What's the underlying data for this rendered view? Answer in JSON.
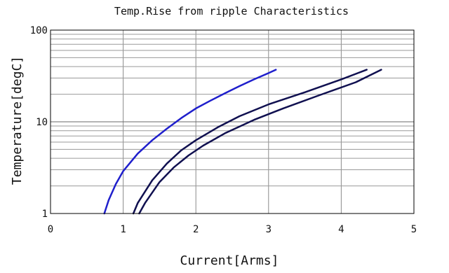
{
  "chart_data": {
    "type": "line",
    "title": "Temp.Rise from ripple Characteristics",
    "xlabel": "Current[Arms]",
    "ylabel": "Temperature[degC]",
    "xlim": [
      0,
      5
    ],
    "ylim": [
      1,
      100
    ],
    "yscale": "log",
    "grid": true,
    "x_ticks": [
      "0",
      "1",
      "2",
      "3",
      "4",
      "5"
    ],
    "y_ticks": [
      "1",
      "10",
      "100"
    ],
    "series": [
      {
        "color": "#1f1fcc",
        "points": [
          [
            0.74,
            1.0
          ],
          [
            0.8,
            1.4
          ],
          [
            0.9,
            2.1
          ],
          [
            1.0,
            2.9
          ],
          [
            1.2,
            4.5
          ],
          [
            1.4,
            6.3
          ],
          [
            1.6,
            8.4
          ],
          [
            1.8,
            11
          ],
          [
            2.0,
            14
          ],
          [
            2.2,
            17
          ],
          [
            2.4,
            20.5
          ],
          [
            2.6,
            24.5
          ],
          [
            2.8,
            29
          ],
          [
            3.0,
            34
          ],
          [
            3.1,
            37
          ]
        ]
      },
      {
        "color": "#101050",
        "points": [
          [
            1.14,
            1.0
          ],
          [
            1.2,
            1.3
          ],
          [
            1.4,
            2.3
          ],
          [
            1.6,
            3.5
          ],
          [
            1.8,
            4.9
          ],
          [
            2.0,
            6.3
          ],
          [
            2.3,
            8.7
          ],
          [
            2.6,
            11.5
          ],
          [
            3.0,
            15.5
          ],
          [
            3.5,
            21
          ],
          [
            4.0,
            29
          ],
          [
            4.35,
            37
          ]
        ]
      },
      {
        "color": "#101050",
        "points": [
          [
            1.22,
            1.0
          ],
          [
            1.3,
            1.3
          ],
          [
            1.5,
            2.2
          ],
          [
            1.7,
            3.2
          ],
          [
            1.9,
            4.3
          ],
          [
            2.1,
            5.5
          ],
          [
            2.4,
            7.5
          ],
          [
            2.8,
            10.5
          ],
          [
            3.2,
            14
          ],
          [
            3.7,
            19.5
          ],
          [
            4.2,
            27
          ],
          [
            4.55,
            37
          ]
        ]
      }
    ]
  }
}
